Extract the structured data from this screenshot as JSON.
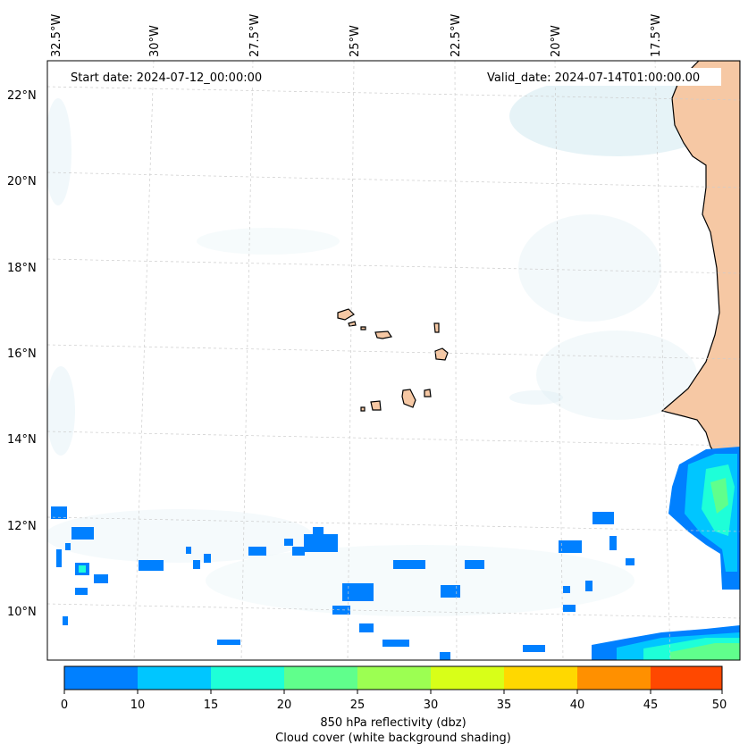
{
  "map": {
    "start_date": "Start date: 2024-07-12_00:00:00",
    "valid_date": "Valid_date: 2024-07-14T01:00:00.00",
    "lon_labels": [
      "32.5°W",
      "30°W",
      "27.5°W",
      "25°W",
      "22.5°W",
      "20°W",
      "17.5°W"
    ],
    "lat_labels": [
      "22°N",
      "20°N",
      "18°N",
      "16°N",
      "14°N",
      "12°N",
      "10°N"
    ]
  },
  "colorbar": {
    "ticks": [
      "0",
      "10",
      "15",
      "20",
      "25",
      "30",
      "35",
      "40",
      "45",
      "50"
    ],
    "colors": [
      "#0080ff",
      "#00c6ff",
      "#1effd8",
      "#60ff8c",
      "#9cff52",
      "#d8ff18",
      "#ffd800",
      "#ff9000",
      "#ff4800"
    ],
    "title": "850 hPa reflectivity (dbz)",
    "subtitle": "Cloud cover (white background shading)"
  },
  "styles": {
    "land_color": "#f6c8a4",
    "cloud_color": "#cde7ef",
    "coast_color": "#000000",
    "grid_color": "#cccccc"
  }
}
